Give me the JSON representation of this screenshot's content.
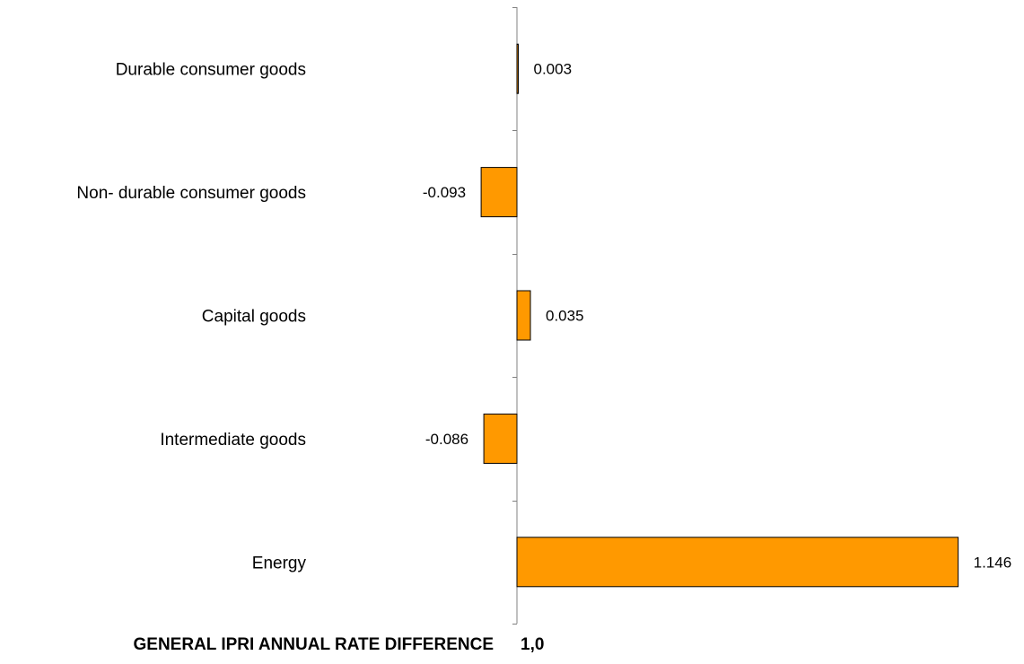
{
  "chart_data": {
    "type": "bar",
    "orientation": "horizontal",
    "categories": [
      "Durable consumer goods",
      "Non- durable consumer goods",
      "Capital goods",
      "Intermediate goods",
      "Energy"
    ],
    "values": [
      0.003,
      -0.093,
      0.035,
      -0.086,
      1.146
    ],
    "data_labels": [
      "0.003",
      "-0.093",
      "0.035",
      "-0.086",
      "1.146"
    ],
    "bar_color": "#FF9900",
    "bar_border_color": "#000000",
    "axis_color": "#808080",
    "grid": false,
    "legend": "none"
  },
  "footer": {
    "label": "GENERAL IPRI ANNUAL RATE DIFFERENCE",
    "value": "1,0"
  }
}
